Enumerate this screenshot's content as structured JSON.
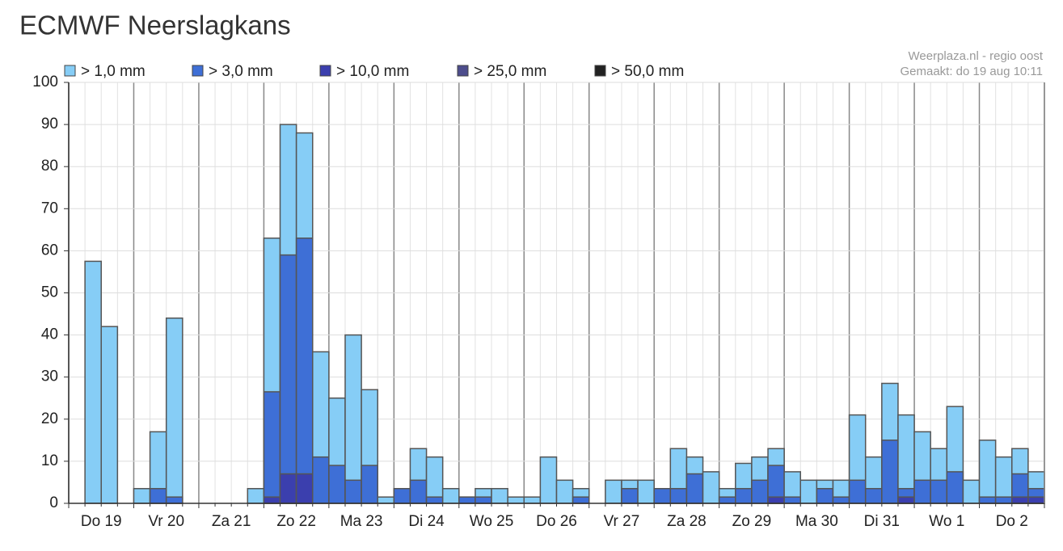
{
  "chart_data": {
    "type": "bar",
    "title": "ECMWF Neerslagkans",
    "credits": [
      "Weerplaza.nl - regio oost",
      "Gemaakt: do 19 aug 10:11"
    ],
    "categories": [
      null,
      null,
      "Do 19",
      null,
      null,
      null,
      "Vr 20",
      null,
      null,
      null,
      "Za 21",
      null,
      null,
      null,
      "Zo 22",
      null,
      null,
      null,
      "Ma 23",
      null,
      null,
      null,
      "Di 24",
      null,
      null,
      null,
      "Wo 25",
      null,
      null,
      null,
      "Do 26",
      null,
      null,
      null,
      "Vr 27",
      null,
      null,
      null,
      "Za 28",
      null,
      null,
      null,
      "Zo 29",
      null,
      null,
      null,
      "Ma 30",
      null,
      null,
      null,
      "Di 31",
      null,
      null,
      null,
      "Wo 1",
      null,
      null,
      null,
      "Do 2",
      null
    ],
    "series": [
      {
        "name": "> 1,0 mm",
        "color": "#86cdf6",
        "values": [
          0,
          57.5,
          42,
          0,
          3.5,
          17,
          44,
          0,
          0,
          0,
          0,
          3.5,
          63,
          90,
          88,
          36,
          25,
          40,
          27,
          1.5,
          3.5,
          13,
          11,
          3.5,
          1.5,
          3.5,
          3.5,
          1.5,
          1.5,
          11,
          5.5,
          3.5,
          0,
          5.5,
          5.5,
          5.5,
          3.5,
          13,
          11,
          7.5,
          3.5,
          9.5,
          11,
          13,
          7.5,
          5.5,
          5.5,
          5.5,
          21,
          11,
          28.5,
          21,
          17,
          13,
          23,
          5.5,
          15,
          11,
          13,
          7.5
        ]
      },
      {
        "name": "> 3,0 mm",
        "color": "#3e6fd6",
        "values": [
          0,
          0,
          0,
          0,
          0,
          3.5,
          1.5,
          0,
          0,
          0,
          0,
          0,
          26.5,
          59,
          63,
          11,
          9,
          5.5,
          9,
          0,
          3.5,
          5.5,
          1.5,
          0,
          1.5,
          1.5,
          0,
          0,
          0,
          0,
          0,
          1.5,
          0,
          0,
          3.5,
          0,
          3.5,
          3.5,
          7,
          0,
          1.5,
          3.5,
          5.5,
          9,
          1.5,
          0,
          3.5,
          1.5,
          5.5,
          3.5,
          15,
          3.5,
          5.5,
          5.5,
          7.5,
          0,
          1.5,
          1.5,
          7,
          3.5
        ]
      },
      {
        "name": "> 10,0 mm",
        "color": "#3b3fae",
        "values": [
          0,
          0,
          0,
          0,
          0,
          0,
          0,
          0,
          0,
          0,
          0,
          0,
          1.5,
          7,
          7,
          0,
          0,
          0,
          0,
          0,
          0,
          0,
          0,
          0,
          0,
          0,
          0,
          0,
          0,
          0,
          0,
          0,
          0,
          0,
          0,
          0,
          0,
          0,
          0,
          0,
          0,
          0,
          0,
          1.5,
          0,
          0,
          0,
          0,
          0,
          0,
          0,
          1.5,
          0,
          0,
          0,
          0,
          0,
          0,
          1.5,
          1.5
        ]
      },
      {
        "name": "> 25,0 mm",
        "color": "#4d4d8c",
        "values": [
          0,
          0,
          0,
          0,
          0,
          0,
          0,
          0,
          0,
          0,
          0,
          0,
          0,
          0,
          0,
          0,
          0,
          0,
          0,
          0,
          0,
          0,
          0,
          0,
          0,
          0,
          0,
          0,
          0,
          0,
          0,
          0,
          0,
          0,
          0,
          0,
          0,
          0,
          0,
          0,
          0,
          0,
          0,
          0,
          0,
          0,
          0,
          0,
          0,
          0,
          0,
          0,
          0,
          0,
          0,
          0,
          0,
          0,
          0,
          0
        ]
      },
      {
        "name": "> 50,0 mm",
        "color": "#222222",
        "values": [
          0,
          0,
          0,
          0,
          0,
          0,
          0,
          0,
          0,
          0,
          0,
          0,
          0,
          0,
          0,
          0,
          0,
          0,
          0,
          0,
          0,
          0,
          0,
          0,
          0,
          0,
          0,
          0,
          0,
          0,
          0,
          0,
          0,
          0,
          0,
          0,
          0,
          0,
          0,
          0,
          0,
          0,
          0,
          0,
          0,
          0,
          0,
          0,
          0,
          0,
          0,
          0,
          0,
          0,
          0,
          0,
          0,
          0,
          0,
          0
        ]
      }
    ],
    "ylim": [
      0,
      100
    ],
    "yticks": [
      0,
      10,
      20,
      30,
      40,
      50,
      60,
      70,
      80,
      90,
      100
    ],
    "grid": true
  }
}
